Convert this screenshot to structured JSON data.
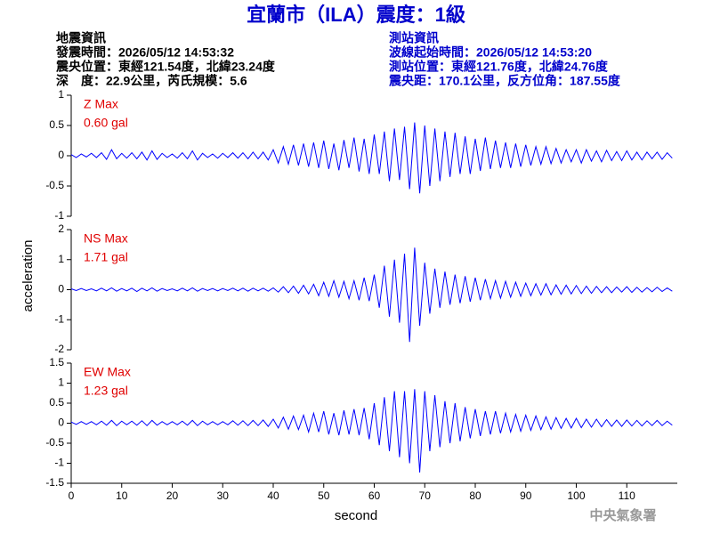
{
  "header": {
    "title": "宜蘭市（ILA）震度：1級",
    "left": [
      "地震資訊",
      "發震時間：2026/05/12 14:53:32",
      "震央位置：東經121.54度，北緯23.24度",
      "深　度：22.9公里，芮氏規模：5.6"
    ],
    "right": [
      "測站資訊",
      "波線起始時間：2026/05/12 14:53:20",
      "測站位置：東經121.76度，北緯24.76度",
      "震央距：170.1公里，反方位角：187.55度"
    ],
    "ylabel": "acceleration",
    "footer": "中央氣象署"
  },
  "chart_data": [
    {
      "type": "line",
      "annotation": [
        "Z Max",
        "0.60 gal"
      ],
      "x": [
        0,
        1,
        2,
        3,
        4,
        5,
        6,
        7,
        8,
        9,
        10,
        11,
        12,
        13,
        14,
        15,
        16,
        17,
        18,
        19,
        20,
        21,
        22,
        23,
        24,
        25,
        26,
        27,
        28,
        29,
        30,
        31,
        32,
        33,
        34,
        35,
        36,
        37,
        38,
        39,
        40,
        41,
        42,
        43,
        44,
        45,
        46,
        47,
        48,
        49,
        50,
        51,
        52,
        53,
        54,
        55,
        56,
        57,
        58,
        59,
        60,
        61,
        62,
        63,
        64,
        65,
        66,
        67,
        68,
        69,
        70,
        71,
        72,
        73,
        74,
        75,
        76,
        77,
        78,
        79,
        80,
        81,
        82,
        83,
        84,
        85,
        86,
        87,
        88,
        89,
        90,
        91,
        92,
        93,
        94,
        95,
        96,
        97,
        98,
        99,
        100,
        101,
        102,
        103,
        104,
        105,
        106,
        107,
        108,
        109,
        110,
        111,
        112,
        113,
        114,
        115,
        116,
        117,
        118,
        119
      ],
      "series": [
        {
          "color": "#0000ff",
          "values": [
            0.02,
            -0.03,
            0.03,
            -0.02,
            0.04,
            -0.03,
            0.05,
            -0.06,
            0.1,
            -0.05,
            0.04,
            -0.04,
            0.05,
            -0.05,
            0.06,
            -0.07,
            0.08,
            -0.06,
            0.04,
            -0.03,
            0.03,
            -0.04,
            0.05,
            -0.05,
            0.08,
            -0.07,
            0.04,
            -0.03,
            0.03,
            -0.04,
            0.04,
            -0.03,
            0.05,
            -0.04,
            0.05,
            -0.05,
            0.06,
            -0.05,
            0.06,
            -0.07,
            0.1,
            -0.12,
            0.15,
            -0.14,
            0.18,
            -0.16,
            0.2,
            -0.18,
            0.22,
            -0.2,
            0.25,
            -0.22,
            0.2,
            -0.24,
            0.26,
            -0.2,
            0.3,
            -0.26,
            0.28,
            -0.3,
            0.35,
            -0.3,
            0.4,
            -0.42,
            0.45,
            -0.4,
            0.48,
            -0.55,
            0.55,
            -0.62,
            0.5,
            -0.5,
            0.45,
            -0.42,
            0.4,
            -0.35,
            0.38,
            -0.3,
            0.32,
            -0.3,
            0.28,
            -0.25,
            0.3,
            -0.22,
            0.25,
            -0.2,
            0.22,
            -0.2,
            0.2,
            -0.18,
            0.18,
            -0.16,
            0.15,
            -0.14,
            0.15,
            -0.13,
            0.12,
            -0.12,
            0.1,
            -0.1,
            0.1,
            -0.12,
            0.1,
            -0.09,
            0.08,
            -0.1,
            0.09,
            -0.08,
            0.07,
            -0.08,
            0.08,
            -0.07,
            0.06,
            -0.07,
            0.06,
            -0.05,
            0.06,
            -0.06,
            0.05,
            -0.04
          ]
        }
      ],
      "xlim": [
        0,
        120
      ],
      "ylim": [
        -1,
        1
      ],
      "yticks": [
        -1,
        -0.5,
        0,
        0.5,
        1
      ]
    },
    {
      "type": "line",
      "annotation": [
        "NS Max",
        "1.71 gal"
      ],
      "x": [
        0,
        1,
        2,
        3,
        4,
        5,
        6,
        7,
        8,
        9,
        10,
        11,
        12,
        13,
        14,
        15,
        16,
        17,
        18,
        19,
        20,
        21,
        22,
        23,
        24,
        25,
        26,
        27,
        28,
        29,
        30,
        31,
        32,
        33,
        34,
        35,
        36,
        37,
        38,
        39,
        40,
        41,
        42,
        43,
        44,
        45,
        46,
        47,
        48,
        49,
        50,
        51,
        52,
        53,
        54,
        55,
        56,
        57,
        58,
        59,
        60,
        61,
        62,
        63,
        64,
        65,
        66,
        67,
        68,
        69,
        70,
        71,
        72,
        73,
        74,
        75,
        76,
        77,
        78,
        79,
        80,
        81,
        82,
        83,
        84,
        85,
        86,
        87,
        88,
        89,
        90,
        91,
        92,
        93,
        94,
        95,
        96,
        97,
        98,
        99,
        100,
        101,
        102,
        103,
        104,
        105,
        106,
        107,
        108,
        109,
        110,
        111,
        112,
        113,
        114,
        115,
        116,
        117,
        118,
        119
      ],
      "series": [
        {
          "color": "#0000ff",
          "values": [
            0.03,
            -0.03,
            0.04,
            -0.03,
            0.03,
            -0.04,
            0.05,
            -0.04,
            0.06,
            -0.05,
            0.04,
            -0.04,
            0.05,
            -0.06,
            0.05,
            -0.04,
            0.06,
            -0.05,
            0.04,
            -0.03,
            0.03,
            -0.04,
            0.05,
            -0.04,
            0.06,
            -0.05,
            0.04,
            -0.03,
            0.04,
            -0.04,
            0.04,
            -0.03,
            0.05,
            -0.04,
            0.05,
            -0.05,
            0.05,
            -0.04,
            0.05,
            -0.05,
            0.06,
            -0.08,
            0.1,
            -0.1,
            0.12,
            -0.12,
            0.15,
            -0.14,
            0.18,
            -0.2,
            0.25,
            -0.22,
            0.3,
            -0.25,
            0.28,
            -0.3,
            0.3,
            -0.35,
            0.4,
            -0.38,
            0.5,
            -0.6,
            0.8,
            -0.9,
            1.0,
            -1.1,
            1.2,
            -1.74,
            1.4,
            -1.2,
            0.9,
            -0.8,
            0.7,
            -0.6,
            0.6,
            -0.5,
            0.5,
            -0.45,
            0.45,
            -0.4,
            0.4,
            -0.35,
            0.35,
            -0.3,
            0.3,
            -0.28,
            0.28,
            -0.25,
            0.25,
            -0.22,
            0.22,
            -0.2,
            0.2,
            -0.18,
            0.2,
            -0.17,
            0.16,
            -0.15,
            0.15,
            -0.14,
            0.14,
            -0.13,
            0.12,
            -0.12,
            0.11,
            -0.1,
            0.1,
            -0.1,
            0.09,
            -0.08,
            0.1,
            -0.09,
            0.08,
            -0.08,
            0.07,
            -0.07,
            0.08,
            -0.06,
            0.06,
            -0.05
          ]
        }
      ],
      "xlim": [
        0,
        120
      ],
      "ylim": [
        -2,
        2
      ],
      "yticks": [
        -2,
        -1,
        0,
        1,
        2
      ]
    },
    {
      "type": "line",
      "annotation": [
        "EW Max",
        "1.23 gal"
      ],
      "x": [
        0,
        1,
        2,
        3,
        4,
        5,
        6,
        7,
        8,
        9,
        10,
        11,
        12,
        13,
        14,
        15,
        16,
        17,
        18,
        19,
        20,
        21,
        22,
        23,
        24,
        25,
        26,
        27,
        28,
        29,
        30,
        31,
        32,
        33,
        34,
        35,
        36,
        37,
        38,
        39,
        40,
        41,
        42,
        43,
        44,
        45,
        46,
        47,
        48,
        49,
        50,
        51,
        52,
        53,
        54,
        55,
        56,
        57,
        58,
        59,
        60,
        61,
        62,
        63,
        64,
        65,
        66,
        67,
        68,
        69,
        70,
        71,
        72,
        73,
        74,
        75,
        76,
        77,
        78,
        79,
        80,
        81,
        82,
        83,
        84,
        85,
        86,
        87,
        88,
        89,
        90,
        91,
        92,
        93,
        94,
        95,
        96,
        97,
        98,
        99,
        100,
        101,
        102,
        103,
        104,
        105,
        106,
        107,
        108,
        109,
        110,
        111,
        112,
        113,
        114,
        115,
        116,
        117,
        118,
        119
      ],
      "series": [
        {
          "color": "#0000ff",
          "values": [
            0.03,
            -0.03,
            0.04,
            -0.03,
            0.04,
            -0.04,
            0.05,
            -0.05,
            0.07,
            -0.06,
            0.05,
            -0.04,
            0.05,
            -0.05,
            0.06,
            -0.06,
            0.07,
            -0.05,
            0.04,
            -0.04,
            0.04,
            -0.04,
            0.05,
            -0.05,
            0.07,
            -0.06,
            0.05,
            -0.04,
            0.04,
            -0.04,
            0.04,
            -0.04,
            0.06,
            -0.05,
            0.06,
            -0.06,
            0.07,
            -0.06,
            0.08,
            -0.08,
            0.1,
            -0.12,
            0.15,
            -0.15,
            0.18,
            -0.16,
            0.2,
            -0.22,
            0.25,
            -0.22,
            0.3,
            -0.28,
            0.25,
            -0.3,
            0.32,
            -0.28,
            0.35,
            -0.3,
            0.38,
            -0.4,
            0.5,
            -0.55,
            0.65,
            -0.7,
            0.8,
            -0.85,
            0.8,
            -1.0,
            0.85,
            -1.23,
            0.8,
            -0.7,
            0.7,
            -0.6,
            0.55,
            -0.5,
            0.5,
            -0.45,
            0.4,
            -0.38,
            0.35,
            -0.32,
            0.3,
            -0.28,
            0.3,
            -0.25,
            0.25,
            -0.22,
            0.22,
            -0.2,
            0.2,
            -0.18,
            0.18,
            -0.16,
            0.16,
            -0.15,
            0.14,
            -0.13,
            0.12,
            -0.12,
            0.12,
            -0.11,
            0.1,
            -0.1,
            0.1,
            -0.09,
            0.09,
            -0.08,
            0.08,
            -0.08,
            0.08,
            -0.07,
            0.07,
            -0.07,
            0.06,
            -0.06,
            0.07,
            -0.06,
            0.05,
            -0.05
          ]
        }
      ],
      "xlim": [
        0,
        120
      ],
      "ylim": [
        -1.5,
        1.5
      ],
      "yticks": [
        -1.5,
        -1,
        -0.5,
        0,
        0.5,
        1,
        1.5
      ],
      "xticks": [
        0,
        10,
        20,
        30,
        40,
        50,
        60,
        70,
        80,
        90,
        100,
        110
      ],
      "xlabel": "second"
    }
  ]
}
